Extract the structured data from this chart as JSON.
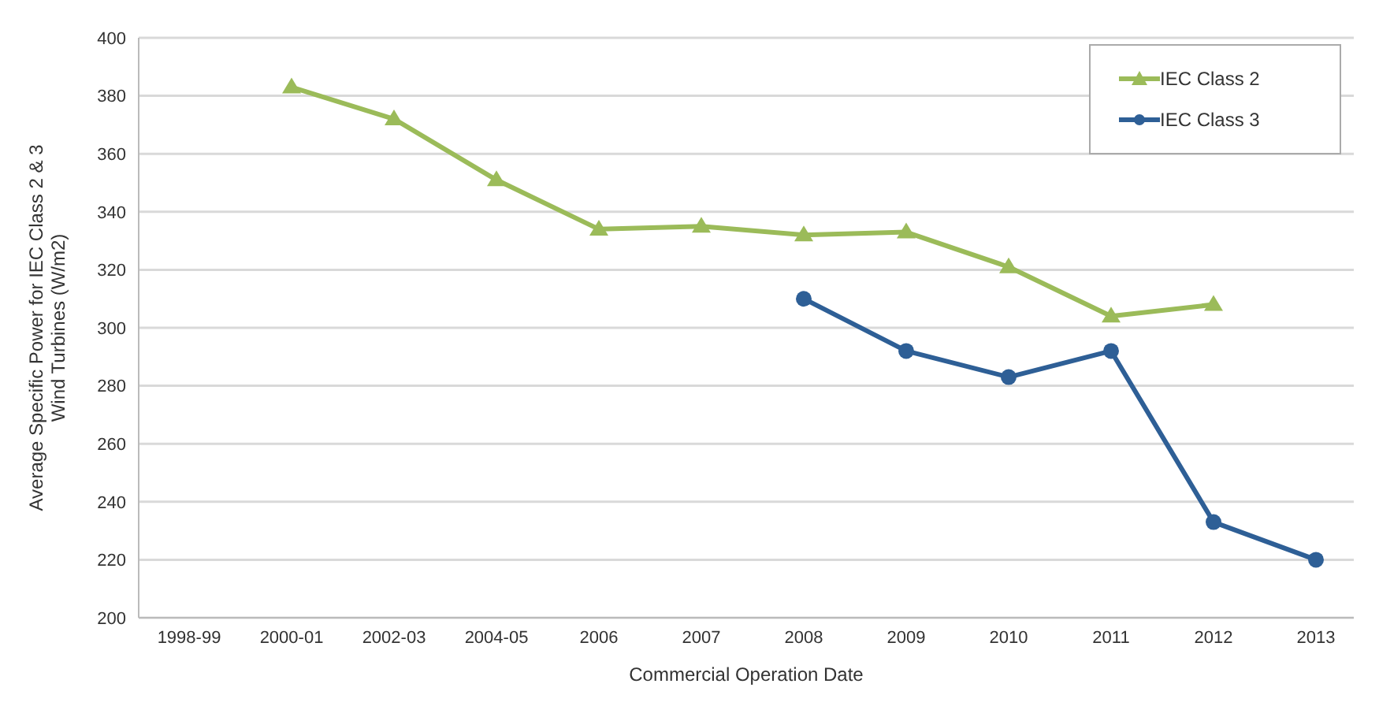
{
  "chart_data": {
    "type": "line",
    "xlabel": "Commercial Operation Date",
    "ylabel": "Average Specific Power for IEC Class 2 & 3 Wind Turbines (W/m2)",
    "categories": [
      "1998-99",
      "2000-01",
      "2002-03",
      "2004-05",
      "2006",
      "2007",
      "2008",
      "2009",
      "2010",
      "2011",
      "2012",
      "2013"
    ],
    "series": [
      {
        "name": "IEC Class 2",
        "color": "#9bbb59",
        "marker": "triangle",
        "values": [
          null,
          383,
          372,
          351,
          334,
          335,
          332,
          333,
          321,
          304,
          308,
          null
        ]
      },
      {
        "name": "IEC Class 3",
        "color": "#2e5f96",
        "marker": "circle",
        "values": [
          null,
          null,
          null,
          null,
          null,
          null,
          310,
          292,
          283,
          292,
          233,
          220
        ]
      }
    ],
    "ylim": [
      200,
      400
    ],
    "yticks": [
      200,
      220,
      240,
      260,
      280,
      300,
      320,
      340,
      360,
      380,
      400
    ],
    "grid": "y",
    "legend": "top right"
  }
}
